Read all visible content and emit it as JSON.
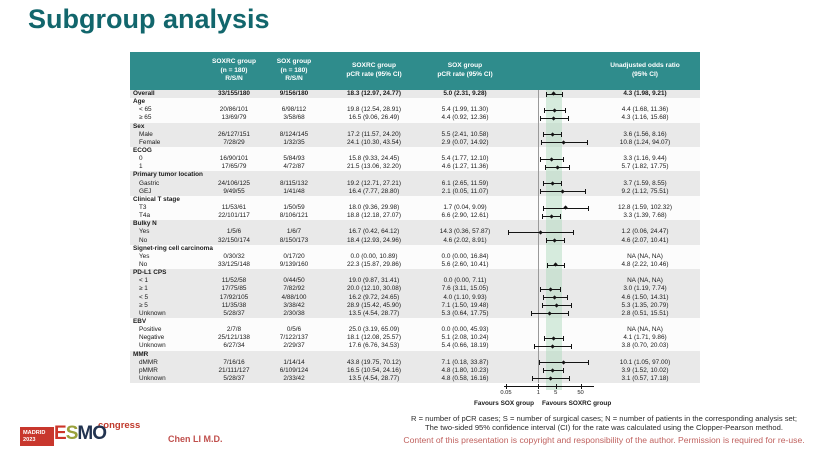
{
  "slide": {
    "title": "Subgroup analysis",
    "presenter": "Chen LI M.D.",
    "footnotes": [
      "R = number of pCR cases; S = number of surgical cases; N = number of patients in the corresponding analysis set;",
      "The two-sided 95% confidence interval (CI) for the rate was calculated using the Clopper-Pearson method.",
      "Content of this presentation is copyright and responsibility of the author. Permission is required for re-use."
    ],
    "logo": {
      "city": "MADRID",
      "year": "2023",
      "congress": "congress",
      "letters": [
        {
          "ch": "E",
          "color": "#cd3529"
        },
        {
          "ch": "S",
          "color": "#9aa13b"
        },
        {
          "ch": "M",
          "color": "#223350"
        },
        {
          "ch": "O",
          "color": "#223350"
        }
      ]
    },
    "colors": {
      "header_teal": "#2f8c8c",
      "title_teal": "#12666c",
      "band_green": "#d4ebdb",
      "accent_red": "#c0504d",
      "row_gray": "#e9e9e9",
      "row_white": "#fcfcfc"
    }
  },
  "table": {
    "columns": [
      [
        ""
      ],
      [
        "SOXRC group",
        "(n = 180)",
        "R/S/N"
      ],
      [
        "SOX group",
        "(n = 180)",
        "R/S/N"
      ],
      [
        "SOXRC group",
        "pCR rate (95% CI)"
      ],
      [
        "SOX group",
        "pCR rate (95% CI)"
      ],
      [
        ""
      ],
      [
        "Unadjusted odds ratio",
        "(95% CI)"
      ]
    ],
    "sections": [
      {
        "title": "",
        "rows": [
          {
            "label": "Overall",
            "bold": true,
            "c1": "33/155/180",
            "c2": "9/156/180",
            "c3": "18.3 (12.97, 24.77)",
            "c4": "5.0 (2.31, 9.28)",
            "or": "4.3 (1.98, 9.21)",
            "v": 4.3,
            "lo": 1.98,
            "hi": 9.21
          }
        ]
      },
      {
        "title": "Age",
        "rows": [
          {
            "label": "< 65",
            "c1": "20/86/101",
            "c2": "6/98/112",
            "c3": "19.8 (12.54, 28.91)",
            "c4": "5.4 (1.99, 11.30)",
            "or": "4.4 (1.68, 11.36)",
            "v": 4.4,
            "lo": 1.68,
            "hi": 11.36
          },
          {
            "label": "≥ 65",
            "c1": "13/69/79",
            "c2": "3/58/68",
            "c3": "16.5 (9.06, 26.49)",
            "c4": "4.4 (0.92, 12.36)",
            "or": "4.3 (1.16, 15.68)",
            "v": 4.3,
            "lo": 1.16,
            "hi": 15.68
          }
        ]
      },
      {
        "title": "Sex",
        "rows": [
          {
            "label": "Male",
            "c1": "26/127/151",
            "c2": "8/124/145",
            "c3": "17.2 (11.57, 24.20)",
            "c4": "5.5 (2.41, 10.58)",
            "or": "3.6 (1.56, 8.16)",
            "v": 3.6,
            "lo": 1.56,
            "hi": 8.16
          },
          {
            "label": "Female",
            "c1": "7/28/29",
            "c2": "1/32/35",
            "c3": "24.1 (10.30, 43.54)",
            "c4": "2.9 (0.07, 14.92)",
            "or": "10.8 (1.24, 94.07)",
            "v": 10.8,
            "lo": 1.24,
            "hi": 94.07
          }
        ]
      },
      {
        "title": "ECOG",
        "rows": [
          {
            "label": "0",
            "c1": "16/90/101",
            "c2": "5/84/93",
            "c3": "15.8 (9.33, 24.45)",
            "c4": "5.4 (1.77, 12.10)",
            "or": "3.3 (1.16, 9.44)",
            "v": 3.3,
            "lo": 1.16,
            "hi": 9.44
          },
          {
            "label": "1",
            "c1": "17/65/79",
            "c2": "4/72/87",
            "c3": "21.5 (13.06, 32.20)",
            "c4": "4.6 (1.27, 11.36)",
            "or": "5.7 (1.82, 17.75)",
            "v": 5.7,
            "lo": 1.82,
            "hi": 17.75
          }
        ]
      },
      {
        "title": "Primary tumor location",
        "rows": [
          {
            "label": "Gastric",
            "c1": "24/106/125",
            "c2": "8/115/132",
            "c3": "19.2 (12.71, 27.21)",
            "c4": "6.1 (2.65, 11.59)",
            "or": "3.7 (1.59, 8.55)",
            "v": 3.7,
            "lo": 1.59,
            "hi": 8.55
          },
          {
            "label": "GEJ",
            "c1": "9/49/55",
            "c2": "1/41/48",
            "c3": "16.4 (7.77, 28.80)",
            "c4": "2.1 (0.05, 11.07)",
            "or": "9.2 (1.12, 75.51)",
            "v": 9.2,
            "lo": 1.12,
            "hi": 75.51
          }
        ]
      },
      {
        "title": "Clinical T stage",
        "rows": [
          {
            "label": "T3",
            "c1": "11/53/61",
            "c2": "1/50/59",
            "c3": "18.0 (9.36, 29.98)",
            "c4": "1.7 (0.04, 9.09)",
            "or": "12.8 (1.59, 102.32)",
            "v": 12.8,
            "lo": 1.59,
            "hi": 102.32
          },
          {
            "label": "T4a",
            "c1": "22/101/117",
            "c2": "8/106/121",
            "c3": "18.8 (12.18, 27.07)",
            "c4": "6.6 (2.90, 12.61)",
            "or": "3.3 (1.39, 7.68)",
            "v": 3.3,
            "lo": 1.39,
            "hi": 7.68
          }
        ]
      },
      {
        "title": "Bulky N",
        "rows": [
          {
            "label": "Yes",
            "c1": "1/5/6",
            "c2": "1/6/7",
            "c3": "16.7 (0.42, 64.12)",
            "c4": "14.3 (0.36, 57.87)",
            "or": "1.2 (0.06, 24.47)",
            "v": 1.2,
            "lo": 0.06,
            "hi": 24.47
          },
          {
            "label": "No",
            "c1": "32/150/174",
            "c2": "8/150/173",
            "c3": "18.4 (12.93, 24.96)",
            "c4": "4.6 (2.02, 8.91)",
            "or": "4.6 (2.07, 10.41)",
            "v": 4.6,
            "lo": 2.07,
            "hi": 10.41
          }
        ]
      },
      {
        "title": "Signet-ring cell carcinoma",
        "rows": [
          {
            "label": "Yes",
            "c1": "0/30/32",
            "c2": "0/17/20",
            "c3": "0.0 (0.00, 10.89)",
            "c4": "0.0 (0.00, 16.84)",
            "or": "NA (NA, NA)",
            "v": null,
            "lo": null,
            "hi": null
          },
          {
            "label": "No",
            "c1": "33/125/148",
            "c2": "9/139/160",
            "c3": "22.3 (15.87, 29.86)",
            "c4": "5.6 (2.60, 10.41)",
            "or": "4.8 (2.22, 10.46)",
            "v": 4.8,
            "lo": 2.22,
            "hi": 10.46
          }
        ]
      },
      {
        "title": "PD-L1 CPS",
        "rows": [
          {
            "label": "< 1",
            "c1": "11/52/58",
            "c2": "0/44/50",
            "c3": "19.0 (9.87, 31.41)",
            "c4": "0.0 (0.00, 7.11)",
            "or": "NA (NA, NA)",
            "v": null,
            "lo": null,
            "hi": null
          },
          {
            "label": "≥ 1",
            "c1": "17/75/85",
            "c2": "7/82/92",
            "c3": "20.0 (12.10, 30.08)",
            "c4": "7.6 (3.11, 15.05)",
            "or": "3.0 (1.19, 7.74)",
            "v": 3.0,
            "lo": 1.19,
            "hi": 7.74
          },
          {
            "label": "< 5",
            "c1": "17/92/105",
            "c2": "4/88/100",
            "c3": "16.2 (9.72, 24.65)",
            "c4": "4.0 (1.10, 9.93)",
            "or": "4.6 (1.50, 14.31)",
            "v": 4.6,
            "lo": 1.5,
            "hi": 14.31
          },
          {
            "label": "≥ 5",
            "c1": "11/35/38",
            "c2": "3/38/42",
            "c3": "28.9 (15.42, 45.90)",
            "c4": "7.1 (1.50, 19.48)",
            "or": "5.3 (1.35, 20.79)",
            "v": 5.3,
            "lo": 1.35,
            "hi": 20.79
          },
          {
            "label": "Unknown",
            "c1": "5/28/37",
            "c2": "2/30/38",
            "c3": "13.5 (4.54, 28.77)",
            "c4": "5.3 (0.64, 17.75)",
            "or": "2.8 (0.51, 15.51)",
            "v": 2.8,
            "lo": 0.51,
            "hi": 15.51
          }
        ]
      },
      {
        "title": "EBV",
        "rows": [
          {
            "label": "Positive",
            "c1": "2/7/8",
            "c2": "0/5/6",
            "c3": "25.0 (3.19, 65.09)",
            "c4": "0.0 (0.00, 45.93)",
            "or": "NA (NA, NA)",
            "v": null,
            "lo": null,
            "hi": null
          },
          {
            "label": "Negative",
            "c1": "25/121/138",
            "c2": "7/122/137",
            "c3": "18.1 (12.08, 25.57)",
            "c4": "5.1 (2.08, 10.24)",
            "or": "4.1 (1.71, 9.86)",
            "v": 4.1,
            "lo": 1.71,
            "hi": 9.86
          },
          {
            "label": "Unknown",
            "c1": "6/27/34",
            "c2": "2/29/37",
            "c3": "17.6 (6.76, 34.53)",
            "c4": "5.4 (0.66, 18.19)",
            "or": "3.8 (0.70, 20.03)",
            "v": 3.8,
            "lo": 0.7,
            "hi": 20.03
          }
        ]
      },
      {
        "title": "MMR",
        "rows": [
          {
            "label": "dMMR",
            "c1": "7/16/16",
            "c2": "1/14/14",
            "c3": "43.8 (19.75, 70.12)",
            "c4": "7.1 (0.18, 33.87)",
            "or": "10.1 (1.05, 97.00)",
            "v": 10.1,
            "lo": 1.05,
            "hi": 97.0
          },
          {
            "label": "pMMR",
            "c1": "21/111/127",
            "c2": "6/109/124",
            "c3": "16.5 (10.54, 24.16)",
            "c4": "4.8 (1.80, 10.23)",
            "or": "3.9 (1.52, 10.02)",
            "v": 3.9,
            "lo": 1.52,
            "hi": 10.02
          },
          {
            "label": "Unknown",
            "c1": "5/28/37",
            "c2": "2/33/42",
            "c3": "13.5 (4.54, 28.77)",
            "c4": "4.8 (0.58, 16.16)",
            "or": "3.1 (0.57, 17.18)",
            "v": 3.1,
            "lo": 0.57,
            "hi": 17.18
          }
        ]
      }
    ]
  },
  "chart_data": {
    "type": "scatter",
    "subtype": "forest-plot",
    "title": "Unadjusted odds ratio (95% CI)",
    "x_scale": "log",
    "x_ticks": [
      0.05,
      1,
      5,
      50
    ],
    "x_domain": [
      0.05,
      120
    ],
    "reference_line": 1,
    "shaded_band": [
      1.98,
      9.21
    ],
    "favours_left": "Favours SOX group",
    "favours_right": "Favours SOXRC group",
    "points": [
      {
        "label": "Overall",
        "or": 4.3,
        "ci": [
          1.98,
          9.21
        ]
      },
      {
        "label": "Age < 65",
        "or": 4.4,
        "ci": [
          1.68,
          11.36
        ]
      },
      {
        "label": "Age ≥ 65",
        "or": 4.3,
        "ci": [
          1.16,
          15.68
        ]
      },
      {
        "label": "Male",
        "or": 3.6,
        "ci": [
          1.56,
          8.16
        ]
      },
      {
        "label": "Female",
        "or": 10.8,
        "ci": [
          1.24,
          94.07
        ]
      },
      {
        "label": "ECOG 0",
        "or": 3.3,
        "ci": [
          1.16,
          9.44
        ]
      },
      {
        "label": "ECOG 1",
        "or": 5.7,
        "ci": [
          1.82,
          17.75
        ]
      },
      {
        "label": "Gastric",
        "or": 3.7,
        "ci": [
          1.59,
          8.55
        ]
      },
      {
        "label": "GEJ",
        "or": 9.2,
        "ci": [
          1.12,
          75.51
        ]
      },
      {
        "label": "T3",
        "or": 12.8,
        "ci": [
          1.59,
          102.32
        ]
      },
      {
        "label": "T4a",
        "or": 3.3,
        "ci": [
          1.39,
          7.68
        ]
      },
      {
        "label": "Bulky N Yes",
        "or": 1.2,
        "ci": [
          0.06,
          24.47
        ]
      },
      {
        "label": "Bulky N No",
        "or": 4.6,
        "ci": [
          2.07,
          10.41
        ]
      },
      {
        "label": "Signet-ring Yes",
        "or": null,
        "ci": [
          null,
          null
        ]
      },
      {
        "label": "Signet-ring No",
        "or": 4.8,
        "ci": [
          2.22,
          10.46
        ]
      },
      {
        "label": "PD-L1 CPS < 1",
        "or": null,
        "ci": [
          null,
          null
        ]
      },
      {
        "label": "PD-L1 CPS ≥ 1",
        "or": 3.0,
        "ci": [
          1.19,
          7.74
        ]
      },
      {
        "label": "PD-L1 CPS < 5",
        "or": 4.6,
        "ci": [
          1.5,
          14.31
        ]
      },
      {
        "label": "PD-L1 CPS ≥ 5",
        "or": 5.3,
        "ci": [
          1.35,
          20.79
        ]
      },
      {
        "label": "PD-L1 CPS Unknown",
        "or": 2.8,
        "ci": [
          0.51,
          15.51
        ]
      },
      {
        "label": "EBV Positive",
        "or": null,
        "ci": [
          null,
          null
        ]
      },
      {
        "label": "EBV Negative",
        "or": 4.1,
        "ci": [
          1.71,
          9.86
        ]
      },
      {
        "label": "EBV Unknown",
        "or": 3.8,
        "ci": [
          0.7,
          20.03
        ]
      },
      {
        "label": "dMMR",
        "or": 10.1,
        "ci": [
          1.05,
          97.0
        ]
      },
      {
        "label": "pMMR",
        "or": 3.9,
        "ci": [
          1.52,
          10.02
        ]
      },
      {
        "label": "MMR Unknown",
        "or": 3.1,
        "ci": [
          0.57,
          17.18
        ]
      }
    ]
  }
}
